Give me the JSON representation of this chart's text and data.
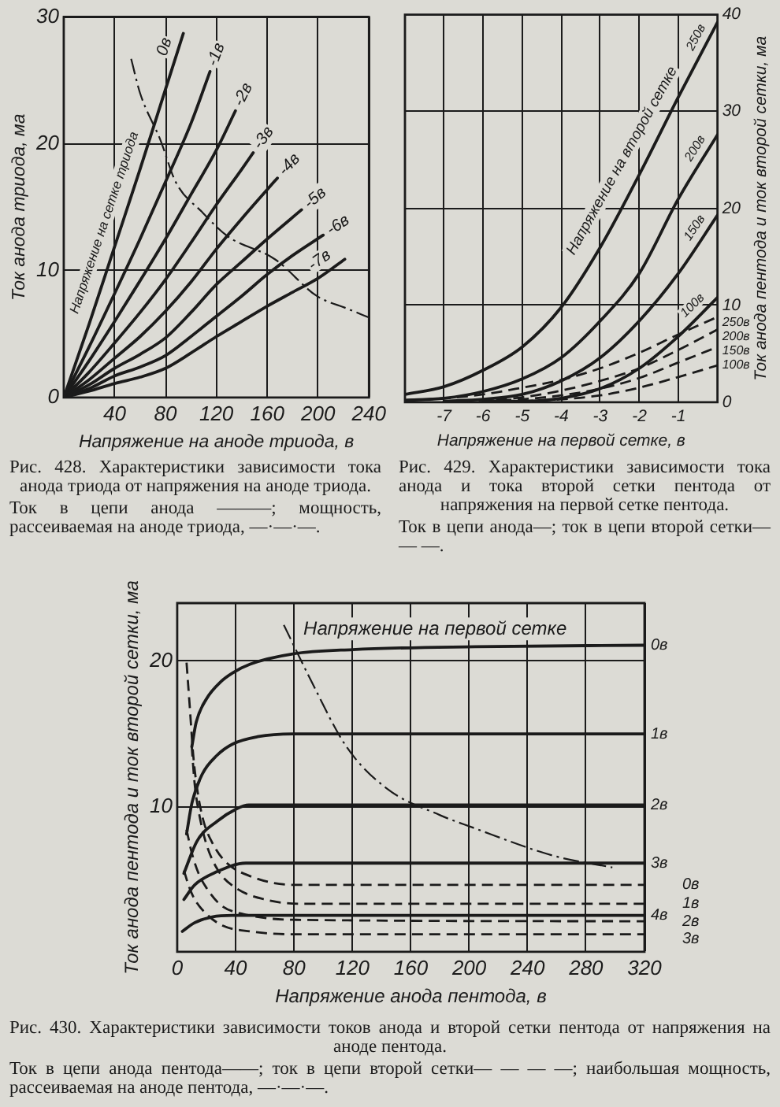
{
  "chart_data": [
    {
      "type": "line",
      "title": "Рис. 428. Характеристики зависимости тока анода триода от напряжения на аноде триода.",
      "xlabel": "Напряжение на аноде триода, в",
      "ylabel": "Ток анода триода, ма",
      "xlim": [
        0,
        240
      ],
      "xticks": [
        40,
        80,
        120,
        160,
        200,
        240
      ],
      "ylim": [
        0,
        30
      ],
      "yticks": [
        0,
        10,
        20,
        30
      ],
      "grid": true,
      "annotations": [
        "Напряжение на сетке триода",
        "Ток в цепи анода ———; мощность, рассеиваемая на аноде триода, —·—·—."
      ],
      "series": [
        {
          "name": "0в",
          "color": "#1b1b1b",
          "line_style": "solid",
          "x": [
            0,
            20,
            40,
            60,
            80,
            94
          ],
          "values": [
            0,
            5.8,
            11.9,
            18,
            24.3,
            28.7
          ]
        },
        {
          "name": "-1в",
          "color": "#1b1b1b",
          "line_style": "solid",
          "x": [
            0,
            20,
            40,
            60,
            80,
            100,
            115
          ],
          "values": [
            0,
            4,
            8.2,
            12.5,
            17,
            21.6,
            25.7
          ]
        },
        {
          "name": "-2в",
          "color": "#1b1b1b",
          "line_style": "solid",
          "x": [
            0,
            20,
            40,
            60,
            80,
            100,
            120,
            135
          ],
          "values": [
            0,
            2.9,
            6,
            9.2,
            12.5,
            16,
            19.5,
            22.6
          ]
        },
        {
          "name": "-3в",
          "color": "#1b1b1b",
          "line_style": "solid",
          "x": [
            0,
            20,
            40,
            60,
            80,
            100,
            120,
            140,
            149
          ],
          "values": [
            0,
            2,
            4.3,
            6.7,
            9.3,
            12.2,
            15.2,
            18,
            19.3
          ]
        },
        {
          "name": "-4в",
          "color": "#1b1b1b",
          "line_style": "solid",
          "x": [
            0,
            20,
            40,
            60,
            80,
            100,
            120,
            140,
            160,
            168
          ],
          "values": [
            0,
            1.4,
            3.1,
            4.8,
            6.8,
            9.1,
            11.7,
            14.1,
            16.4,
            17.3
          ]
        },
        {
          "name": "-5в",
          "color": "#1b1b1b",
          "line_style": "solid",
          "x": [
            0,
            20,
            40,
            60,
            80,
            100,
            120,
            140,
            160,
            187
          ],
          "values": [
            0,
            1,
            2.3,
            3.4,
            4.7,
            6.7,
            8.9,
            10.7,
            12.5,
            14.8
          ]
        },
        {
          "name": "-6в",
          "color": "#1b1b1b",
          "line_style": "solid",
          "x": [
            0,
            20,
            40,
            60,
            80,
            100,
            120,
            140,
            160,
            180,
            204
          ],
          "values": [
            0,
            0.7,
            1.7,
            2.4,
            3.3,
            4.8,
            6.4,
            8,
            9.7,
            11.2,
            12.8
          ]
        },
        {
          "name": "-7в",
          "color": "#1b1b1b",
          "line_style": "solid",
          "x": [
            0,
            20,
            40,
            60,
            80,
            100,
            120,
            140,
            160,
            180,
            200,
            221
          ],
          "values": [
            0,
            0.5,
            1.1,
            1.6,
            2.3,
            3.5,
            4.8,
            6,
            7.2,
            8.3,
            9.4,
            10.9
          ]
        },
        {
          "color": "#1b1b1b",
          "line_style": "dashdot",
          "x": [
            53,
            60,
            76,
            88,
            109,
            129,
            166,
            199,
            223,
            240
          ],
          "values": [
            26.7,
            24,
            20.3,
            17,
            14.6,
            12.7,
            10.9,
            8,
            7,
            6.3
          ]
        }
      ]
    },
    {
      "type": "line",
      "title": "Рис. 429. Характеристики зависимости тока анода и тока второй сетки пентода от напряжения на первой сетке пентода.",
      "xlabel": "Напряжение на первой сетке, в",
      "y2label": "Ток анода пентода и ток второй сетки, ма",
      "xlim": [
        -8,
        0
      ],
      "xticks": [
        -7,
        -6,
        -5,
        -4,
        -3,
        -2,
        -1
      ],
      "y2lim": [
        0,
        40
      ],
      "y2ticks": [
        0,
        10,
        20,
        30,
        40
      ],
      "grid": true,
      "annotations": [
        "Напряжение на второй сетке",
        "Ток в цепи анода—; ток в цепи второй сетки— — —."
      ],
      "series": [
        {
          "name": "250в",
          "color": "#1b1b1b",
          "line_style": "solid",
          "axis": "y2",
          "x": [
            -8,
            -7,
            -6,
            -5,
            -4,
            -3,
            -2,
            -1,
            0
          ],
          "values": [
            0.8,
            1.6,
            3.3,
            5.7,
            9.8,
            16,
            23.5,
            31.5,
            39.2
          ]
        },
        {
          "name": "200в",
          "color": "#1b1b1b",
          "line_style": "solid",
          "axis": "y2",
          "x": [
            -8,
            -7,
            -6,
            -5,
            -4,
            -3,
            -2,
            -1,
            0
          ],
          "values": [
            0.2,
            0.4,
            1.1,
            2.4,
            4.6,
            8.4,
            13.3,
            21,
            27.6
          ]
        },
        {
          "name": "150в",
          "color": "#1b1b1b",
          "line_style": "solid",
          "axis": "y2",
          "x": [
            -7,
            -6,
            -5,
            -4,
            -3,
            -2,
            -1,
            0
          ],
          "values": [
            0.1,
            0.3,
            0.8,
            2.2,
            4.6,
            8.4,
            13.3,
            19.3
          ]
        },
        {
          "name": "100в",
          "color": "#1b1b1b",
          "line_style": "solid",
          "axis": "y2",
          "x": [
            -6,
            -5,
            -4,
            -3,
            -2,
            -1,
            0
          ],
          "values": [
            0.1,
            0.1,
            0.4,
            1.4,
            3.5,
            6.8,
            10.8
          ]
        },
        {
          "name": "250в",
          "color": "#1b1b1b",
          "line_style": "dashed",
          "axis": "y2",
          "x": [
            -8,
            -7,
            -6,
            -5,
            -4,
            -3,
            -2,
            -1,
            0
          ],
          "values": [
            0.2,
            0.4,
            0.8,
            1.5,
            2.3,
            3.5,
            5.1,
            7,
            8.8
          ]
        },
        {
          "name": "200в",
          "color": "#1b1b1b",
          "line_style": "dashed",
          "axis": "y2",
          "x": [
            -7,
            -6,
            -5,
            -4,
            -3,
            -2,
            -1,
            0
          ],
          "values": [
            0.1,
            0.2,
            0.5,
            1.2,
            2.2,
            3.5,
            5.4,
            7.5
          ]
        },
        {
          "name": "150в",
          "color": "#1b1b1b",
          "line_style": "dashed",
          "axis": "y2",
          "x": [
            -6,
            -5,
            -4,
            -3,
            -2,
            -1,
            0
          ],
          "values": [
            0.1,
            0.3,
            0.7,
            1.4,
            2.5,
            4.1,
            5.7
          ]
        },
        {
          "name": "100в",
          "color": "#1b1b1b",
          "line_style": "dashed",
          "axis": "y2",
          "x": [
            -5,
            -4,
            -3,
            -2,
            -1,
            0
          ],
          "values": [
            0.1,
            0.3,
            0.7,
            1.5,
            2.6,
            3.8
          ]
        }
      ]
    },
    {
      "type": "line",
      "title": "Рис. 430. Характеристики зависимости токов анода и второй сетки пентода от напряжения на аноде пентода.",
      "xlabel": "Напряжение анода пентода, в",
      "ylabel": "Ток анода пентода и ток второй сетки, ма",
      "xlim": [
        0,
        320
      ],
      "xticks": [
        0,
        40,
        80,
        120,
        160,
        200,
        240,
        280,
        320
      ],
      "ylim": [
        0,
        24
      ],
      "yticks": [
        10,
        20
      ],
      "grid": true,
      "annotations": [
        "Напряжение на первой сетке",
        "Ток в цепи анода пентода——; ток в цепи второй сетки— — — —; наибольшая мощность, рассеиваемая на аноде пентода, —·—·—."
      ],
      "series": [
        {
          "name": "0в",
          "color": "#1b1b1b",
          "line_style": "solid",
          "x": [
            10,
            13,
            20,
            30,
            38,
            50,
            79,
            120,
            204,
            320
          ],
          "values": [
            14.1,
            15.8,
            17.4,
            18.6,
            19.2,
            19.8,
            20.5,
            20.8,
            21,
            21.1
          ]
        },
        {
          "name": "1в",
          "color": "#1b1b1b",
          "line_style": "solid",
          "x": [
            6.4,
            10,
            17,
            27,
            38,
            55,
            79,
            320
          ],
          "values": [
            8.1,
            10.2,
            12.2,
            13.5,
            14.3,
            14.8,
            15,
            15
          ]
        },
        {
          "name": "2в",
          "color": "#1b1b1b",
          "line_style": "solid",
          "x": [
            4.6,
            13.5,
            27.6,
            40,
            49,
            320
          ],
          "values": [
            5.4,
            7.6,
            9,
            9.8,
            10.1,
            10.1
          ]
        },
        {
          "name": "3в",
          "color": "#1b1b1b",
          "line_style": "solid",
          "x": [
            4.6,
            12,
            27,
            47,
            320
          ],
          "values": [
            3.6,
            4.6,
            5.5,
            6.1,
            6.1
          ]
        },
        {
          "name": "4в",
          "color": "#1b1b1b",
          "line_style": "solid",
          "x": [
            3.5,
            12,
            24,
            38,
            320
          ],
          "values": [
            1.4,
            2,
            2.4,
            2.5,
            2.5
          ]
        },
        {
          "name": "0в",
          "color": "#1b1b1b",
          "line_style": "dashed",
          "x": [
            6.4,
            8.5,
            11,
            14,
            18,
            24,
            33,
            50,
            80,
            320
          ],
          "values": [
            19.9,
            17,
            13.5,
            11,
            9,
            7.5,
            6.2,
            5.2,
            4.6,
            4.6
          ]
        },
        {
          "name": "1в",
          "color": "#1b1b1b",
          "line_style": "dashed",
          "x": [
            9.9,
            12,
            15,
            20,
            28,
            40,
            60,
            85,
            320
          ],
          "values": [
            14.2,
            11.5,
            9.5,
            7.4,
            5.6,
            4.4,
            3.6,
            3.3,
            3.3
          ]
        },
        {
          "name": "2в",
          "color": "#1b1b1b",
          "line_style": "dashed",
          "x": [
            6.4,
            10,
            15,
            20,
            30,
            45,
            80,
            320
          ],
          "values": [
            8.4,
            6.8,
            5.3,
            4.4,
            3.2,
            2.6,
            2.2,
            2.1
          ]
        },
        {
          "name": "3в",
          "color": "#1b1b1b",
          "line_style": "dashed",
          "x": [
            4.6,
            8,
            12,
            20,
            31,
            50,
            80,
            320
          ],
          "values": [
            5.6,
            4.5,
            3.6,
            2.6,
            1.8,
            1.4,
            1.2,
            1.2
          ]
        },
        {
          "color": "#1b1b1b",
          "line_style": "dashdot",
          "x": [
            73,
            91,
            116,
            144,
            180,
            201,
            258,
            298
          ],
          "values": [
            22.5,
            18.8,
            14.1,
            11.2,
            9.4,
            8.6,
            6.6,
            5.8
          ]
        }
      ]
    }
  ]
}
